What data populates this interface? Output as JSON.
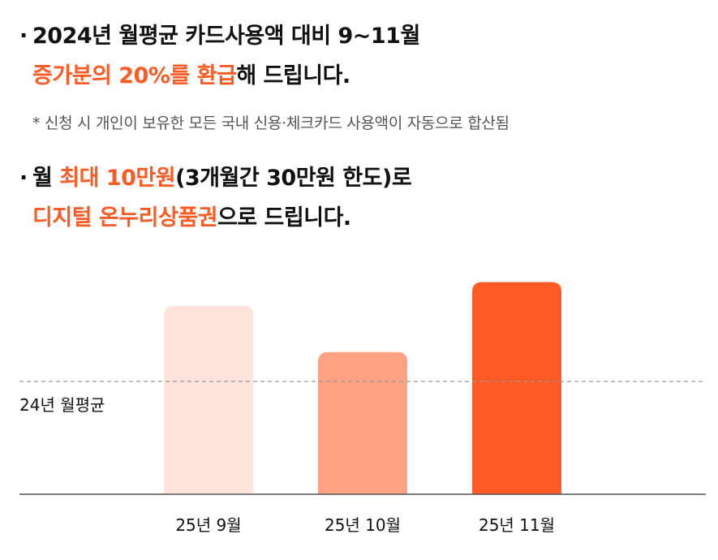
{
  "header": {
    "line1": {
      "bullet": "·",
      "text": "2024년 월평균 카드사용액 대비 9~11월"
    },
    "line2": {
      "highlight": "증가분의 20%를 환급",
      "text": "해 드립니다."
    },
    "note": "* 신청 시 개인이 보유한 모든 국내 신용·체크카드 사용액이 자동으로 합산됨",
    "line3": {
      "bullet": "·",
      "pre": "월 ",
      "highlight": "최대 10만원",
      "text": "(3개월간 30만원 한도)로"
    },
    "line4": {
      "highlight": "디지털 온누리상품권",
      "text": "으로 드립니다."
    }
  },
  "colors": {
    "accent": "#ff5a24",
    "bar_light": "#fde3da",
    "bar_medium": "#ffa284",
    "bar_strong": "#ff5a24",
    "reference_line": "#999999",
    "baseline": "#555555"
  },
  "chart_data": {
    "type": "bar",
    "categories": [
      "25년 9월",
      "25년 10월",
      "25년 11월"
    ],
    "values": [
      167,
      126,
      188
    ],
    "ylim": [
      0,
      200
    ],
    "reference": {
      "label": "24년 월평균",
      "value": 100
    },
    "bar_colors": [
      "#fde3da",
      "#ffa284",
      "#ff5a24"
    ],
    "grid": false,
    "legend": "none"
  }
}
